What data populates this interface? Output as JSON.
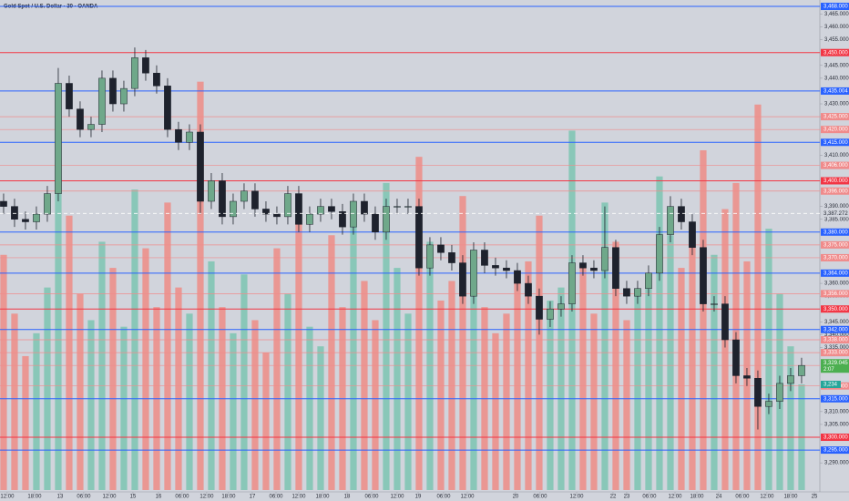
{
  "chart_data": {
    "type": "candlestick",
    "title": "Gold Spot / U.S. Dollar · 30 · OANDA",
    "open": [
      3392,
      3390,
      3385,
      3384,
      3387,
      3395,
      3438,
      3428,
      3420,
      3422,
      3440,
      3430,
      3436,
      3448,
      3442,
      3437,
      3420,
      3415,
      3419,
      3392,
      3400,
      3386,
      3392,
      3396,
      3389,
      3387,
      3386,
      3395,
      3383,
      3387,
      3390,
      3388,
      3382,
      3392,
      3387,
      3380,
      3390,
      3390,
      3390,
      3366,
      3375,
      3372,
      3368,
      3355,
      3373,
      3367,
      3366,
      3365,
      3360,
      3355,
      3346,
      3350,
      3352,
      3368,
      3366,
      3365,
      3374,
      3358,
      3355,
      3358,
      3364,
      3379,
      3390,
      3384,
      3374,
      3352,
      3352,
      3338,
      3324,
      3323,
      3312,
      3314,
      3321,
      3324
    ],
    "high": [
      3395,
      3393,
      3388,
      3390,
      3398,
      3444,
      3441,
      3431,
      3425,
      3443,
      3443,
      3439,
      3452,
      3451,
      3445,
      3440,
      3423,
      3422,
      3422,
      3403,
      3403,
      3395,
      3399,
      3399,
      3392,
      3390,
      3398,
      3398,
      3390,
      3393,
      3393,
      3391,
      3395,
      3395,
      3390,
      3393,
      3393,
      3393,
      3393,
      3378,
      3378,
      3375,
      3371,
      3376,
      3376,
      3370,
      3369,
      3368,
      3363,
      3358,
      3353,
      3355,
      3371,
      3371,
      3369,
      3390,
      3377,
      3361,
      3361,
      3367,
      3382,
      3394,
      3393,
      3387,
      3377,
      3355,
      3355,
      3341,
      3327,
      3326,
      3317,
      3324,
      3327,
      3331
    ],
    "low": [
      3387,
      3382,
      3381,
      3381,
      3384,
      3392,
      3425,
      3417,
      3417,
      3419,
      3427,
      3427,
      3433,
      3439,
      3434,
      3417,
      3412,
      3412,
      3387,
      3389,
      3383,
      3383,
      3389,
      3386,
      3384,
      3383,
      3383,
      3380,
      3380,
      3384,
      3385,
      3379,
      3379,
      3384,
      3377,
      3377,
      3387,
      3387,
      3363,
      3363,
      3369,
      3365,
      3352,
      3352,
      3364,
      3363,
      3362,
      3357,
      3352,
      3340,
      3343,
      3347,
      3349,
      3363,
      3362,
      3362,
      3355,
      3352,
      3352,
      3355,
      3361,
      3376,
      3381,
      3371,
      3349,
      3349,
      3335,
      3321,
      3320,
      3303,
      3309,
      3311,
      3318,
      3321
    ],
    "close": [
      3390,
      3385,
      3384,
      3387,
      3395,
      3438,
      3428,
      3420,
      3422,
      3440,
      3430,
      3436,
      3448,
      3442,
      3437,
      3420,
      3415,
      3419,
      3392,
      3400,
      3386,
      3392,
      3396,
      3389,
      3387,
      3386,
      3395,
      3383,
      3387,
      3390,
      3388,
      3382,
      3392,
      3387,
      3380,
      3390,
      3390,
      3390,
      3366,
      3375,
      3372,
      3368,
      3355,
      3373,
      3367,
      3366,
      3365,
      3360,
      3355,
      3346,
      3350,
      3352,
      3368,
      3366,
      3365,
      3374,
      3358,
      3355,
      3358,
      3364,
      3379,
      3390,
      3384,
      3374,
      3352,
      3352,
      3338,
      3324,
      3323,
      3312,
      3314,
      3321,
      3324,
      3328
    ],
    "volume": [
      7200,
      5400,
      4100,
      4800,
      6200,
      9800,
      8400,
      6000,
      5200,
      7600,
      6800,
      5000,
      9200,
      7400,
      5600,
      8800,
      6200,
      5400,
      12500,
      7000,
      5600,
      4800,
      6600,
      5200,
      4200,
      7400,
      6000,
      8200,
      5000,
      4400,
      7800,
      5600,
      8600,
      6400,
      5200,
      9400,
      6800,
      5400,
      10200,
      7600,
      5800,
      6400,
      9000,
      7200,
      5600,
      4800,
      5400,
      6600,
      7000,
      8400,
      5800,
      6200,
      11000,
      6800,
      5400,
      8800,
      7600,
      5200,
      6000,
      6600,
      9600,
      7800,
      6800,
      8000,
      10400,
      7200,
      8600,
      9400,
      7000,
      11800,
      8000,
      6000,
      4400,
      3234
    ],
    "volume_ylim": [
      0,
      15000
    ],
    "up_color": "#6fa88a",
    "down_color": "#1e222d",
    "volume_up_color": "#7cc4b2",
    "volume_down_color": "#ef8c86",
    "xlim": [
      -0.33,
      74.67
    ],
    "ylim": [
      3279.4,
      3470.5
    ],
    "xticks": [
      {
        "value": 0.33,
        "label": "12:00"
      },
      {
        "value": 2.83,
        "label": "18:00"
      },
      {
        "value": 5.17,
        "label": "13"
      },
      {
        "value": 7.33,
        "label": "06:00"
      },
      {
        "value": 9.67,
        "label": "12:00"
      },
      {
        "value": 11.83,
        "label": "15"
      },
      {
        "value": 14.17,
        "label": "16"
      },
      {
        "value": 16.33,
        "label": "06:00"
      },
      {
        "value": 18.58,
        "label": "12:00"
      },
      {
        "value": 20.58,
        "label": "18:00"
      },
      {
        "value": 22.75,
        "label": "17"
      },
      {
        "value": 24.92,
        "label": "06:00"
      },
      {
        "value": 27,
        "label": "12:00"
      },
      {
        "value": 29.17,
        "label": "18:00"
      },
      {
        "value": 31.42,
        "label": "18"
      },
      {
        "value": 33.67,
        "label": "06:00"
      },
      {
        "value": 36,
        "label": "12:00"
      },
      {
        "value": 37.92,
        "label": "19"
      },
      {
        "value": 40.25,
        "label": "06:00"
      },
      {
        "value": 42.42,
        "label": "12:00"
      },
      {
        "value": 46.83,
        "label": "20"
      },
      {
        "value": 49.08,
        "label": "06:00"
      },
      {
        "value": 52.42,
        "label": "12:00"
      },
      {
        "value": 55.75,
        "label": "22"
      },
      {
        "value": 57,
        "label": "23"
      },
      {
        "value": 59.08,
        "label": "06:00"
      },
      {
        "value": 61.42,
        "label": "12:00"
      },
      {
        "value": 63.42,
        "label": "18:00"
      },
      {
        "value": 65.42,
        "label": "24"
      },
      {
        "value": 67.58,
        "label": "06:00"
      },
      {
        "value": 69.83,
        "label": "12:00"
      },
      {
        "value": 72,
        "label": "18:00"
      },
      {
        "value": 74.17,
        "label": "25"
      }
    ],
    "yticks": [
      {
        "value": 3465,
        "label": "3,465.000"
      },
      {
        "value": 3460,
        "label": "3,460.000"
      },
      {
        "value": 3455,
        "label": "3,455.000"
      },
      {
        "value": 3445,
        "label": "3,445.000"
      },
      {
        "value": 3440,
        "label": "3,440.000"
      },
      {
        "value": 3430,
        "label": "3,430.000"
      },
      {
        "value": 3425,
        "label": "3,425.000"
      },
      {
        "value": 3410,
        "label": "3,410.000"
      },
      {
        "value": 3390,
        "label": "3,390.000"
      },
      {
        "value": 3385,
        "label": "3,385.000"
      },
      {
        "value": 3360,
        "label": "3,360.000"
      },
      {
        "value": 3355,
        "label": "3,355.000"
      },
      {
        "value": 3345,
        "label": "3,345.000"
      },
      {
        "value": 3340,
        "label": "3,340.000"
      },
      {
        "value": 3335,
        "label": "3,335.000"
      },
      {
        "value": 3310,
        "label": "3,310.000"
      },
      {
        "value": 3305,
        "label": "3,305.000"
      },
      {
        "value": 3290,
        "label": "3,290.000"
      }
    ],
    "levels": [
      {
        "value": 3468,
        "label": "3,468.000",
        "color": "#2962ff"
      },
      {
        "value": 3450,
        "label": "3,450.000",
        "color": "#f23645"
      },
      {
        "value": 3435.004,
        "label": "3,435.004",
        "color": "#2962ff"
      },
      {
        "value": 3425,
        "label": "3,425.000",
        "color": "#f08b8b"
      },
      {
        "value": 3420,
        "label": "3,420.000",
        "color": "#f08b8b"
      },
      {
        "value": 3415,
        "label": "3,415.000",
        "color": "#2962ff"
      },
      {
        "value": 3406,
        "label": "3,406.000",
        "color": "#f08b8b"
      },
      {
        "value": 3400,
        "label": "3,400.000",
        "color": "#f23645"
      },
      {
        "value": 3396,
        "label": "3,396.000",
        "color": "#f08b8b"
      },
      {
        "value": 3380,
        "label": "3,380.000",
        "color": "#2962ff"
      },
      {
        "value": 3375,
        "label": "3,375.000",
        "color": "#f08b8b"
      },
      {
        "value": 3370,
        "label": "3,370.000",
        "color": "#f08b8b"
      },
      {
        "value": 3364,
        "label": "3,364.000",
        "color": "#2962ff"
      },
      {
        "value": 3356,
        "label": "3,356.000",
        "color": "#f08b8b"
      },
      {
        "value": 3350,
        "label": "3,350.000",
        "color": "#f23645"
      },
      {
        "value": 3342,
        "label": "3,342.000",
        "color": "#2962ff"
      },
      {
        "value": 3338,
        "label": "3,338.000",
        "color": "#f08b8b"
      },
      {
        "value": 3333,
        "label": "3,333.000",
        "color": "#f08b8b"
      },
      {
        "value": 3328,
        "label": "3,328.000",
        "color": "#f08b8b"
      },
      {
        "value": 3320,
        "label": "3,320.000",
        "color": "#f08b8b"
      },
      {
        "value": 3315,
        "label": "3,315.000",
        "color": "#2962ff"
      },
      {
        "value": 3300,
        "label": "3,300.000",
        "color": "#f23645"
      },
      {
        "value": 3295,
        "label": "3,295.000",
        "color": "#2962ff"
      }
    ],
    "crosshair": {
      "value": 3387.272,
      "label": "3,387.272"
    },
    "last_price": {
      "value": 3329.045,
      "label": "3,329.045",
      "countdown": "2:07",
      "color": "#4caf50"
    },
    "last_volume": {
      "value": 3234,
      "label": "3,234",
      "color": "#26a69a"
    }
  }
}
